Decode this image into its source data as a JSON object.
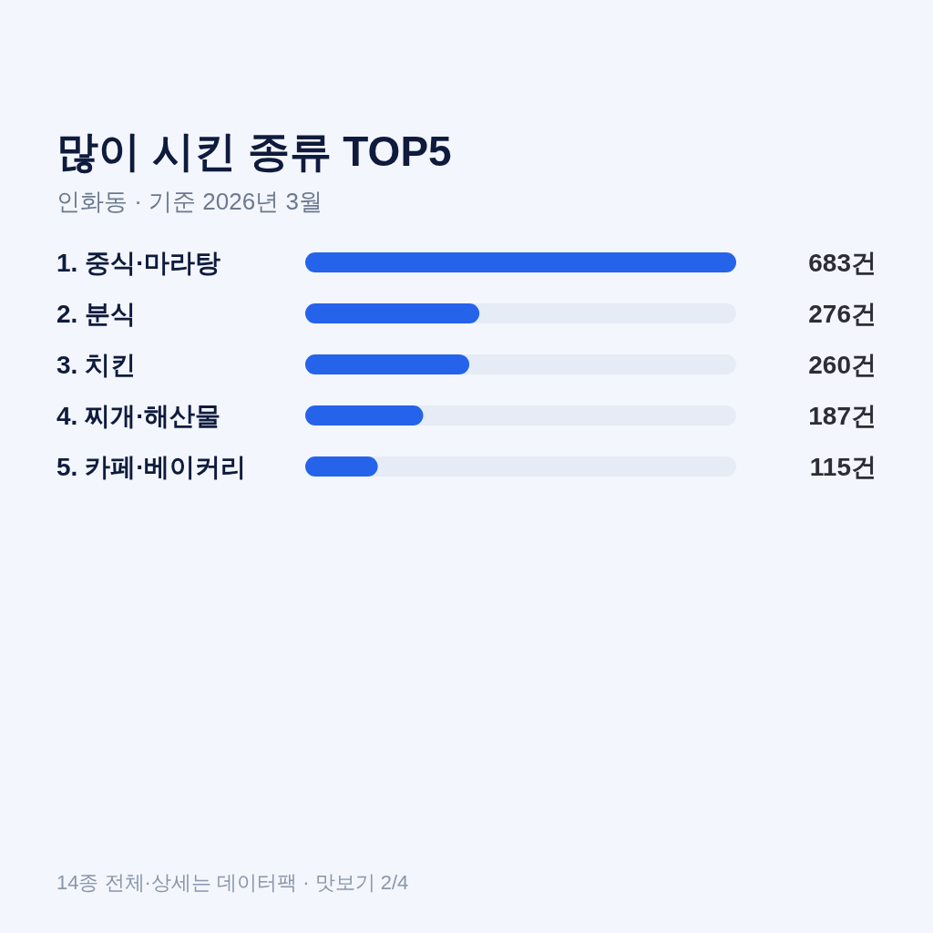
{
  "chart_data": {
    "type": "bar",
    "orientation": "horizontal",
    "title": "많이 시킨 종류 TOP5",
    "subtitle": "인화동 · 기준 2026년 3월",
    "categories": [
      "1. 중식·마라탕",
      "2. 분식",
      "3. 치킨",
      "4. 찌개·해산물",
      "5. 카페·베이커리"
    ],
    "values": [
      683,
      276,
      260,
      187,
      115
    ],
    "value_labels": [
      "683건",
      "276건",
      "260건",
      "187건",
      "115건"
    ],
    "color": "#2563eb",
    "annotations": [
      "14종 전체·상세는 데이터팩 · 맛보기 2/4"
    ]
  }
}
